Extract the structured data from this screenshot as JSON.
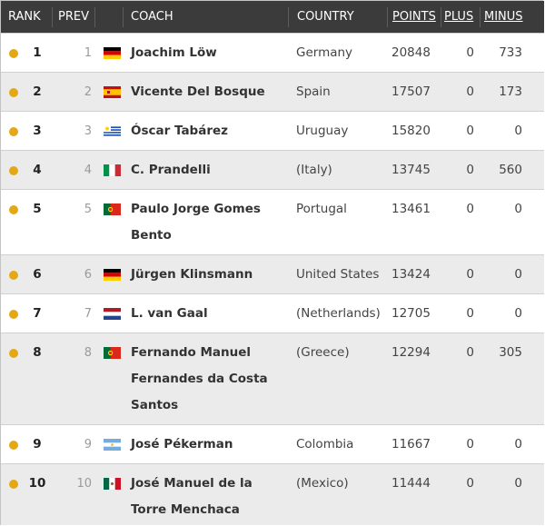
{
  "headers": {
    "rank": "RANK",
    "prev": "PREV",
    "coach": "COACH",
    "country": "COUNTRY",
    "points": "POINTS",
    "plus": "PLUS",
    "minus": "MINUS"
  },
  "rows": [
    {
      "rank": "1",
      "prev": "1",
      "flag": "germany-flag-icon",
      "coach": "Joachim Löw",
      "country": "Germany",
      "points": "20848",
      "plus": "0",
      "minus": "733"
    },
    {
      "rank": "2",
      "prev": "2",
      "flag": "spain-flag-icon",
      "coach": "Vicente Del Bosque",
      "country": "Spain",
      "points": "17507",
      "plus": "0",
      "minus": "173"
    },
    {
      "rank": "3",
      "prev": "3",
      "flag": "uruguay-flag-icon",
      "coach": "Óscar Tabárez",
      "country": "Uruguay",
      "points": "15820",
      "plus": "0",
      "minus": "0"
    },
    {
      "rank": "4",
      "prev": "4",
      "flag": "italy-flag-icon",
      "coach": "C. Prandelli",
      "country": "(Italy)",
      "points": "13745",
      "plus": "0",
      "minus": "560"
    },
    {
      "rank": "5",
      "prev": "5",
      "flag": "portugal-flag-icon",
      "coach": "Paulo Jorge Gomes Bento",
      "country": "Portugal",
      "points": "13461",
      "plus": "0",
      "minus": "0"
    },
    {
      "rank": "6",
      "prev": "6",
      "flag": "germany-flag-icon",
      "coach": "Jürgen Klinsmann",
      "country": "United States",
      "points": "13424",
      "plus": "0",
      "minus": "0"
    },
    {
      "rank": "7",
      "prev": "7",
      "flag": "netherlands-flag-icon",
      "coach": "L. van Gaal",
      "country": "(Netherlands)",
      "points": "12705",
      "plus": "0",
      "minus": "0"
    },
    {
      "rank": "8",
      "prev": "8",
      "flag": "portugal-flag-icon",
      "coach": "Fernando Manuel Fernandes da Costa Santos",
      "country": "(Greece)",
      "points": "12294",
      "plus": "0",
      "minus": "305"
    },
    {
      "rank": "9",
      "prev": "9",
      "flag": "argentina-flag-icon",
      "coach": "José Pékerman",
      "country": "Colombia",
      "points": "11667",
      "plus": "0",
      "minus": "0"
    },
    {
      "rank": "10",
      "prev": "10",
      "flag": "mexico-flag-icon",
      "coach": "José Manuel de la Torre Menchaca",
      "country": "(Mexico)",
      "points": "11444",
      "plus": "0",
      "minus": "0"
    }
  ],
  "colors": {
    "header_bg": "#3b3b3b",
    "row_alt_bg": "#ebebeb",
    "status_dot": "#e3a816"
  }
}
